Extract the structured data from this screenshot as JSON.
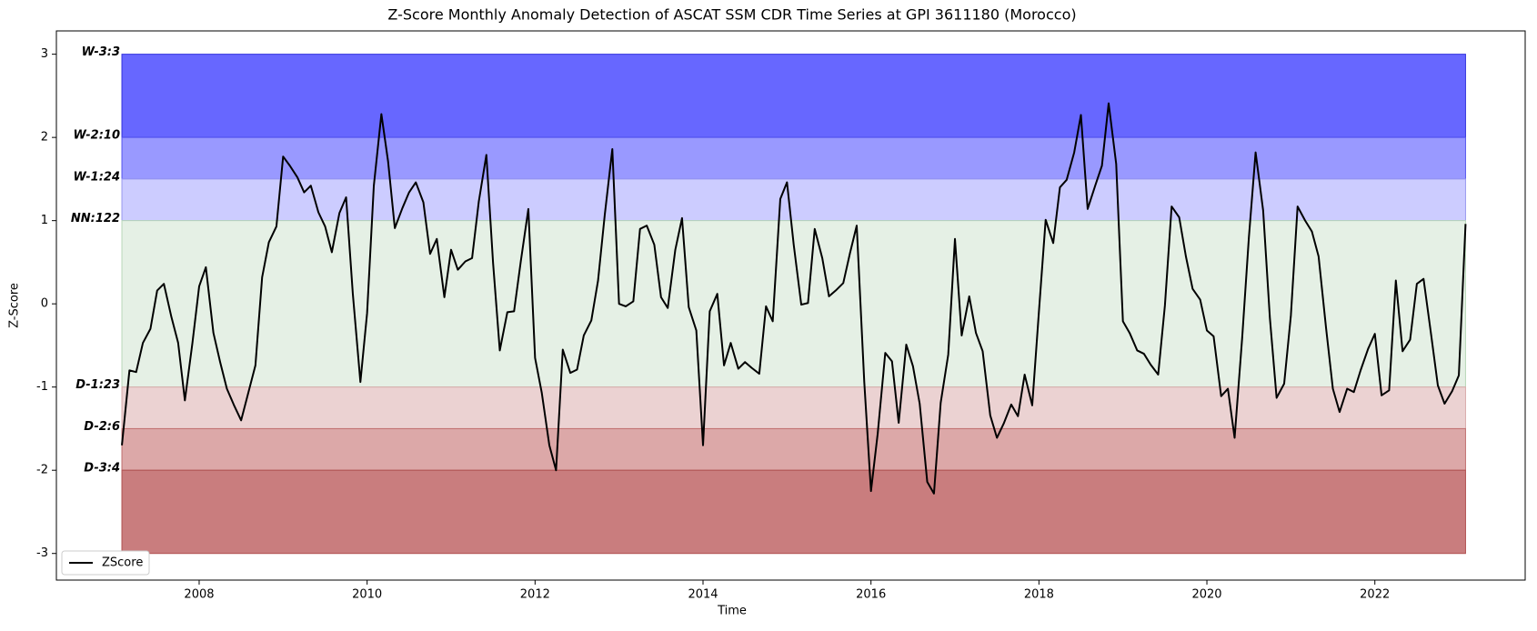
{
  "chart_data": {
    "type": "line",
    "title": "Z-Score Monthly Anomaly Detection of ASCAT SSM CDR Time Series at GPI 3611180 (Morocco)",
    "x_label": "Time",
    "y_label": "Z-Score",
    "xlim": [
      2006.3,
      2023.79
    ],
    "xticks": [
      2008,
      2010,
      2012,
      2014,
      2016,
      2018,
      2020,
      2022
    ],
    "ylim": [
      -3.32,
      3.28
    ],
    "yticks": [
      -3,
      -2,
      -1,
      0,
      1,
      2,
      3
    ],
    "legend": "lower left",
    "bands": [
      {
        "label": "W-3:3",
        "from": 2,
        "to": 3,
        "color": "#6767ff",
        "edge": "#3333dd"
      },
      {
        "label": "W-2:10",
        "from": 1.5,
        "to": 2,
        "color": "#9999ff",
        "edge": "#5555ee"
      },
      {
        "label": "W-1:24",
        "from": 1,
        "to": 1.5,
        "color": "#ccccff",
        "edge": "#9999ee"
      },
      {
        "label": "NN:122",
        "from": -1,
        "to": 1,
        "color": "#e5f0e5",
        "edge": "#b8d8b8"
      },
      {
        "label": "D-1:23",
        "from": -1.5,
        "to": -1,
        "color": "#ebd2d2",
        "edge": "#d8aaaa"
      },
      {
        "label": "D-2:6",
        "from": -2,
        "to": -1.5,
        "color": "#dca8a8",
        "edge": "#c07070"
      },
      {
        "label": "D-3:4",
        "from": -3,
        "to": -2,
        "color": "#c97d7e",
        "edge": "#b05050"
      }
    ],
    "x": [
      2007.08,
      2007.17,
      2007.25,
      2007.33,
      2007.42,
      2007.5,
      2007.58,
      2007.67,
      2007.75,
      2007.83,
      2007.92,
      2008.0,
      2008.08,
      2008.17,
      2008.25,
      2008.33,
      2008.42,
      2008.5,
      2008.58,
      2008.67,
      2008.75,
      2008.83,
      2008.92,
      2009.0,
      2009.08,
      2009.17,
      2009.25,
      2009.33,
      2009.42,
      2009.5,
      2009.58,
      2009.67,
      2009.75,
      2009.83,
      2009.92,
      2010.0,
      2010.08,
      2010.17,
      2010.25,
      2010.33,
      2010.42,
      2010.5,
      2010.58,
      2010.67,
      2010.75,
      2010.83,
      2010.92,
      2011.0,
      2011.08,
      2011.17,
      2011.25,
      2011.33,
      2011.42,
      2011.5,
      2011.58,
      2011.67,
      2011.75,
      2011.83,
      2011.92,
      2012.0,
      2012.08,
      2012.17,
      2012.25,
      2012.33,
      2012.42,
      2012.5,
      2012.58,
      2012.67,
      2012.75,
      2012.83,
      2012.92,
      2013.0,
      2013.08,
      2013.17,
      2013.25,
      2013.33,
      2013.42,
      2013.5,
      2013.58,
      2013.67,
      2013.75,
      2013.83,
      2013.92,
      2014.0,
      2014.08,
      2014.17,
      2014.25,
      2014.33,
      2014.42,
      2014.5,
      2014.58,
      2014.67,
      2014.75,
      2014.83,
      2014.92,
      2015.0,
      2015.08,
      2015.17,
      2015.25,
      2015.33,
      2015.42,
      2015.5,
      2015.58,
      2015.67,
      2015.75,
      2015.83,
      2015.92,
      2016.0,
      2016.08,
      2016.17,
      2016.25,
      2016.33,
      2016.42,
      2016.5,
      2016.58,
      2016.67,
      2016.75,
      2016.83,
      2016.92,
      2017.0,
      2017.08,
      2017.17,
      2017.25,
      2017.33,
      2017.42,
      2017.5,
      2017.58,
      2017.67,
      2017.75,
      2017.83,
      2017.92,
      2018.0,
      2018.08,
      2018.17,
      2018.25,
      2018.33,
      2018.42,
      2018.5,
      2018.58,
      2018.67,
      2018.75,
      2018.83,
      2018.92,
      2019.0,
      2019.08,
      2019.17,
      2019.25,
      2019.33,
      2019.42,
      2019.5,
      2019.58,
      2019.67,
      2019.75,
      2019.83,
      2019.92,
      2020.0,
      2020.08,
      2020.17,
      2020.25,
      2020.33,
      2020.42,
      2020.5,
      2020.58,
      2020.67,
      2020.75,
      2020.83,
      2020.92,
      2021.0,
      2021.08,
      2021.17,
      2021.25,
      2021.33,
      2021.42,
      2021.5,
      2021.58,
      2021.67,
      2021.75,
      2021.83,
      2021.92,
      2022.0,
      2022.08,
      2022.17,
      2022.25,
      2022.33,
      2022.42,
      2022.5,
      2022.58,
      2022.67,
      2022.75,
      2022.83,
      2022.92,
      2023.0,
      2023.08
    ],
    "series": [
      {
        "name": "ZScore",
        "color": "#000000",
        "values": [
          -1.7,
          -0.8,
          -0.82,
          -0.47,
          -0.3,
          0.16,
          0.24,
          -0.16,
          -0.47,
          -1.16,
          -0.47,
          0.21,
          0.44,
          -0.35,
          -0.7,
          -1.02,
          -1.23,
          -1.4,
          -1.09,
          -0.74,
          0.32,
          0.74,
          0.93,
          1.77,
          1.66,
          1.52,
          1.34,
          1.42,
          1.1,
          0.93,
          0.62,
          1.09,
          1.28,
          0.12,
          -0.94,
          -0.11,
          1.42,
          2.28,
          1.71,
          0.91,
          1.15,
          1.34,
          1.46,
          1.22,
          0.6,
          0.78,
          0.08,
          0.65,
          0.41,
          0.51,
          0.55,
          1.23,
          1.79,
          0.49,
          -0.56,
          -0.1,
          -0.09,
          0.51,
          1.14,
          -0.65,
          -1.07,
          -1.7,
          -2.0,
          -0.55,
          -0.83,
          -0.79,
          -0.38,
          -0.2,
          0.28,
          1.07,
          1.86,
          0.0,
          -0.03,
          0.03,
          0.9,
          0.94,
          0.71,
          0.08,
          -0.05,
          0.65,
          1.03,
          -0.04,
          -0.32,
          -1.7,
          -0.09,
          0.12,
          -0.74,
          -0.47,
          -0.78,
          -0.7,
          -0.77,
          -0.84,
          -0.03,
          -0.21,
          1.26,
          1.46,
          0.71,
          -0.01,
          0.01,
          0.9,
          0.55,
          0.09,
          0.16,
          0.25,
          0.61,
          0.94,
          -0.94,
          -2.25,
          -1.56,
          -0.59,
          -0.69,
          -1.43,
          -0.49,
          -0.75,
          -1.2,
          -2.14,
          -2.28,
          -1.19,
          -0.61,
          0.78,
          -0.38,
          0.09,
          -0.35,
          -0.57,
          -1.34,
          -1.61,
          -1.44,
          -1.21,
          -1.35,
          -0.85,
          -1.22,
          -0.09,
          1.01,
          0.73,
          1.4,
          1.49,
          1.82,
          2.27,
          1.14,
          1.42,
          1.66,
          2.41,
          1.68,
          -0.21,
          -0.35,
          -0.56,
          -0.6,
          -0.73,
          -0.85,
          -0.02,
          1.17,
          1.04,
          0.57,
          0.18,
          0.05,
          -0.32,
          -0.39,
          -1.11,
          -1.02,
          -1.61,
          -0.41,
          0.8,
          1.82,
          1.12,
          -0.17,
          -1.13,
          -0.96,
          -0.14,
          1.17,
          1.0,
          0.87,
          0.57,
          -0.3,
          -1.02,
          -1.3,
          -1.02,
          -1.06,
          -0.8,
          -0.54,
          -0.36,
          -1.1,
          -1.04,
          0.28,
          -0.57,
          -0.43,
          0.24,
          0.3,
          -0.37,
          -0.98,
          -1.2,
          -1.05,
          -0.86,
          0.96
        ]
      }
    ]
  }
}
